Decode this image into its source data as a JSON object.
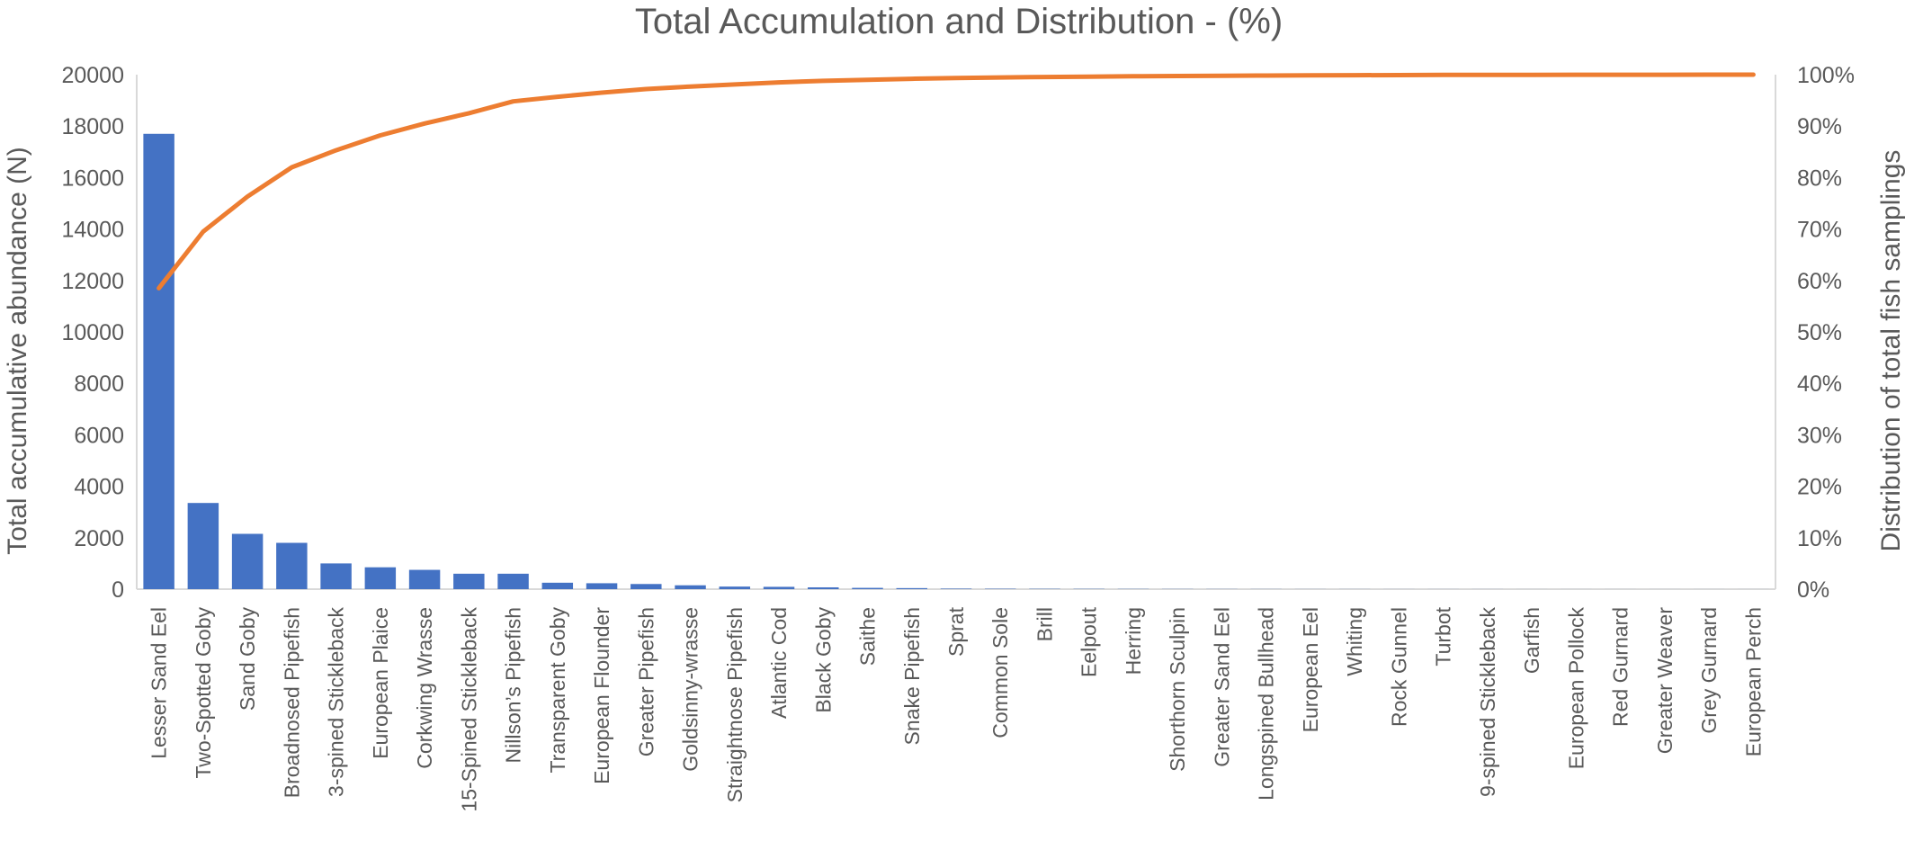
{
  "chart_data": {
    "type": "bar",
    "title": "Total Accumulation and Distribution - (%)",
    "xlabel": "",
    "ylabel": "Total accumulative abundance (N)",
    "y2label": "Distribution of total fish samplings",
    "ylim": [
      0,
      20000
    ],
    "y_ticks": [
      "0",
      "2000",
      "4000",
      "6000",
      "8000",
      "10000",
      "12000",
      "14000",
      "16000",
      "18000",
      "20000"
    ],
    "y2lim": [
      0,
      100
    ],
    "y2_ticks": [
      "0%",
      "10%",
      "20%",
      "30%",
      "40%",
      "50%",
      "60%",
      "70%",
      "80%",
      "90%",
      "100%"
    ],
    "grid": false,
    "legend": "none",
    "colors": {
      "bars": "#4472C4",
      "line": "#ED7D31",
      "axis": "#D9D9D9",
      "text": "#595959"
    },
    "categories": [
      "Lesser Sand Eel",
      "Two-Spotted Goby",
      "Sand Goby",
      "Broadnosed Pipefish",
      "3-spined Stickleback",
      "European Plaice",
      "Corkwing Wrasse",
      "15-Spined Stickleback",
      "Nillson’s Pipefish",
      "Transparent Goby",
      "European Flounder",
      "Greater Pipefish",
      "Goldsinny-wrasse",
      "Straightnose Pipefish",
      "Atlantic Cod",
      "Black Goby",
      "Saithe",
      "Snake Pipefish",
      "Sprat",
      "Common Sole",
      "Brill",
      "Eelpout",
      "Herring",
      "Shorthorn Sculpin",
      "Greater Sand Eel",
      "Longspined Bullhead",
      "European Eel",
      "Whiting",
      "Rock Gunnel",
      "Turbot",
      "9-spined Stickleback",
      "Garfish",
      "European Pollock",
      "Red Gurnard",
      "Greater Weaver",
      "Grey Gurnard",
      "European Perch"
    ],
    "series": [
      {
        "type": "bar",
        "axis": "left",
        "values": [
          17700,
          3350,
          2150,
          1800,
          1000,
          850,
          750,
          600,
          600,
          250,
          230,
          200,
          150,
          100,
          90,
          70,
          50,
          40,
          20,
          15,
          12,
          10,
          8,
          6,
          5,
          4,
          3,
          3,
          2,
          2,
          2,
          1,
          1,
          1,
          1,
          1,
          1
        ]
      },
      {
        "type": "line",
        "axis": "right",
        "values": [
          58.5,
          69.5,
          76.3,
          82,
          85.3,
          88.2,
          90.5,
          92.5,
          94.8,
          95.7,
          96.5,
          97.2,
          97.7,
          98.1,
          98.5,
          98.8,
          99.0,
          99.2,
          99.35,
          99.45,
          99.55,
          99.62,
          99.68,
          99.74,
          99.79,
          99.83,
          99.87,
          99.9,
          99.92,
          99.94,
          99.96,
          99.97,
          99.98,
          99.99,
          99.99,
          100,
          100
        ]
      }
    ]
  }
}
